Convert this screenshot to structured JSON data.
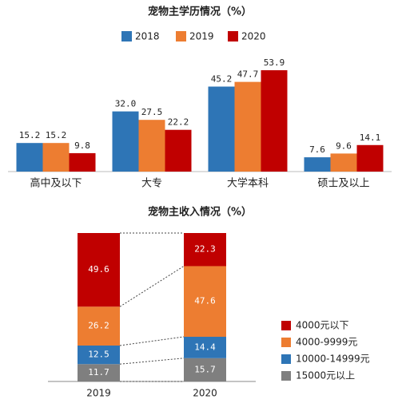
{
  "chart_data": [
    {
      "type": "bar",
      "title": "宠物主学历情况（%）",
      "categories": [
        "高中及以下",
        "大专",
        "大学本科",
        "硕士及以上"
      ],
      "series": [
        {
          "name": "2018",
          "color": "#2e75b6",
          "values": [
            15.2,
            32,
            45.2,
            7.6
          ],
          "value_labels": [
            "15.2",
            "32.0",
            "45.2",
            "7.6"
          ]
        },
        {
          "name": "2019",
          "color": "#ed7d31",
          "values": [
            15.2,
            27.5,
            47.7,
            9.6
          ],
          "value_labels": [
            "15.2",
            "27.5",
            "47.7",
            "9.6"
          ]
        },
        {
          "name": "2020",
          "color": "#c00000",
          "values": [
            9.8,
            22.2,
            53.9,
            14.1
          ],
          "value_labels": [
            "9.8",
            "22.2",
            "53.9",
            "14.1"
          ]
        }
      ]
    },
    {
      "type": "stacked-bar",
      "title": "宠物主收入情况（%）",
      "categories": [
        "2019",
        "2020"
      ],
      "series": [
        {
          "name": "4000元以下",
          "color": "#c00000",
          "values": [
            49.6,
            22.3
          ]
        },
        {
          "name": "4000-9999元",
          "color": "#ed7d31",
          "values": [
            26.2,
            47.6
          ]
        },
        {
          "name": "10000-14999元",
          "color": "#2e75b6",
          "values": [
            12.5,
            14.4
          ]
        },
        {
          "name": "15000元以上",
          "color": "#7f7f7f",
          "values": [
            11.7,
            15.7
          ]
        }
      ]
    }
  ]
}
